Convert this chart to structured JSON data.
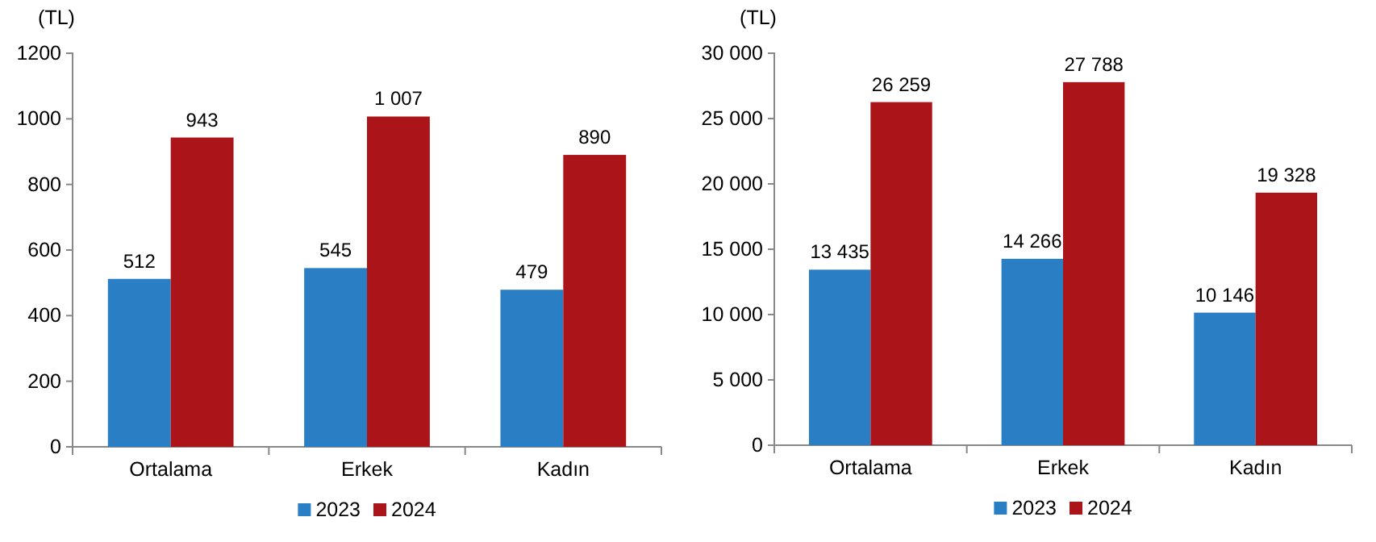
{
  "chart_data": [
    {
      "type": "bar",
      "ylabel": "(TL)",
      "categories": [
        "Ortalama",
        "Erkek",
        "Kadın"
      ],
      "series": [
        {
          "name": "2023",
          "color": "#2a7fc4",
          "values": [
            512,
            545,
            479
          ],
          "value_labels": [
            "512",
            "545",
            "479"
          ]
        },
        {
          "name": "2024",
          "color": "#ab1519",
          "values": [
            943,
            1007,
            890
          ],
          "value_labels": [
            "943",
            "1 007",
            "890"
          ]
        }
      ],
      "ylim": [
        0,
        1200
      ],
      "yticks": [
        0,
        200,
        400,
        600,
        800,
        1000,
        1200
      ],
      "grid": false,
      "legend": "bottom"
    },
    {
      "type": "bar",
      "ylabel": "(TL)",
      "categories": [
        "Ortalama",
        "Erkek",
        "Kadın"
      ],
      "series": [
        {
          "name": "2023",
          "color": "#2a7fc4",
          "values": [
            13435,
            14266,
            10146
          ],
          "value_labels": [
            "13 435",
            "14 266",
            "10 146"
          ]
        },
        {
          "name": "2024",
          "color": "#ab1519",
          "values": [
            26259,
            27788,
            19328
          ],
          "value_labels": [
            "26 259",
            "27 788",
            "19 328"
          ]
        }
      ],
      "ylim": [
        0,
        30000
      ],
      "yticks": [
        0,
        {
          "value": 5000,
          "label": "5 000"
        },
        {
          "value": 10000,
          "label": "10 000"
        },
        {
          "value": 15000,
          "label": "15 000"
        },
        {
          "value": 20000,
          "label": "20 000"
        },
        {
          "value": 25000,
          "label": "25 000"
        },
        {
          "value": 30000,
          "label": "30 000"
        }
      ],
      "grid": false,
      "legend": "bottom"
    }
  ]
}
